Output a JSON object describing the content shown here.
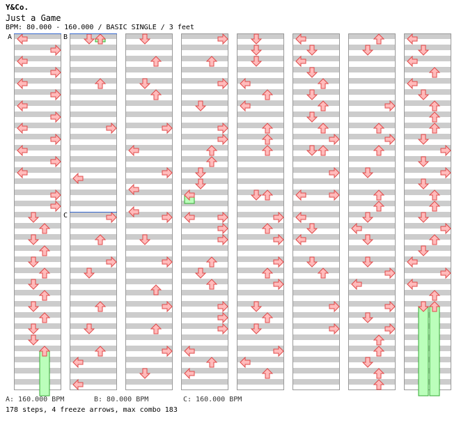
{
  "header": {
    "artist": "Y&Co.",
    "title": "Just a Game",
    "info": "BPM: 80.000 - 160.000 / BASIC SINGLE / 3 feet"
  },
  "colors": {
    "arrow_fill": "#ffbbbb",
    "arrow_stroke": "#e04848",
    "freeze_fill": "#bbffbb",
    "freeze_stroke": "#33aa33",
    "stripe": "#cccccc",
    "marker_line": "#3366cc"
  },
  "chart": {
    "columns": 8,
    "rows_per_measure": 8,
    "markers": [
      {
        "label": "A",
        "column": 0,
        "row": 0
      },
      {
        "label": "B",
        "column": 1,
        "row": 0
      },
      {
        "label": "C",
        "column": 1,
        "row": 32
      }
    ],
    "arrows": [
      {
        "c": 0,
        "r": 0,
        "d": "L"
      },
      {
        "c": 0,
        "r": 2,
        "d": "R"
      },
      {
        "c": 0,
        "r": 4,
        "d": "L"
      },
      {
        "c": 0,
        "r": 6,
        "d": "R"
      },
      {
        "c": 0,
        "r": 8,
        "d": "L"
      },
      {
        "c": 0,
        "r": 10,
        "d": "R"
      },
      {
        "c": 0,
        "r": 12,
        "d": "L"
      },
      {
        "c": 0,
        "r": 14,
        "d": "R"
      },
      {
        "c": 0,
        "r": 16,
        "d": "L"
      },
      {
        "c": 0,
        "r": 18,
        "d": "R"
      },
      {
        "c": 0,
        "r": 20,
        "d": "L"
      },
      {
        "c": 0,
        "r": 22,
        "d": "R"
      },
      {
        "c": 0,
        "r": 24,
        "d": "L"
      },
      {
        "c": 0,
        "r": 28,
        "d": "R"
      },
      {
        "c": 0,
        "r": 30,
        "d": "R"
      },
      {
        "c": 0,
        "r": 32,
        "d": "D"
      },
      {
        "c": 0,
        "r": 34,
        "d": "U"
      },
      {
        "c": 0,
        "r": 36,
        "d": "D"
      },
      {
        "c": 0,
        "r": 38,
        "d": "U"
      },
      {
        "c": 0,
        "r": 40,
        "d": "D"
      },
      {
        "c": 0,
        "r": 42,
        "d": "U"
      },
      {
        "c": 0,
        "r": 44,
        "d": "D"
      },
      {
        "c": 0,
        "r": 46,
        "d": "U"
      },
      {
        "c": 0,
        "r": 48,
        "d": "D"
      },
      {
        "c": 0,
        "r": 50,
        "d": "U"
      },
      {
        "c": 0,
        "r": 52,
        "d": "D"
      },
      {
        "c": 0,
        "r": 54,
        "d": "D"
      },
      {
        "c": 0,
        "r": 56,
        "d": "U"
      },
      {
        "c": 1,
        "r": 0,
        "d": "D"
      },
      {
        "c": 1,
        "r": 0,
        "d": "U"
      },
      {
        "c": 1,
        "r": 8,
        "d": "U"
      },
      {
        "c": 1,
        "r": 16,
        "d": "R"
      },
      {
        "c": 1,
        "r": 25,
        "d": "L"
      },
      {
        "c": 1,
        "r": 32,
        "d": "R"
      },
      {
        "c": 1,
        "r": 36,
        "d": "U"
      },
      {
        "c": 1,
        "r": 40,
        "d": "R"
      },
      {
        "c": 1,
        "r": 42,
        "d": "D"
      },
      {
        "c": 1,
        "r": 48,
        "d": "U"
      },
      {
        "c": 1,
        "r": 52,
        "d": "D"
      },
      {
        "c": 1,
        "r": 56,
        "d": "U"
      },
      {
        "c": 1,
        "r": 58,
        "d": "L"
      },
      {
        "c": 1,
        "r": 62,
        "d": "L"
      },
      {
        "c": 2,
        "r": 0,
        "d": "D"
      },
      {
        "c": 2,
        "r": 4,
        "d": "U"
      },
      {
        "c": 2,
        "r": 8,
        "d": "D"
      },
      {
        "c": 2,
        "r": 10,
        "d": "U"
      },
      {
        "c": 2,
        "r": 16,
        "d": "R"
      },
      {
        "c": 2,
        "r": 20,
        "d": "L"
      },
      {
        "c": 2,
        "r": 24,
        "d": "R"
      },
      {
        "c": 2,
        "r": 27,
        "d": "L"
      },
      {
        "c": 2,
        "r": 31,
        "d": "L"
      },
      {
        "c": 2,
        "r": 32,
        "d": "R"
      },
      {
        "c": 2,
        "r": 36,
        "d": "D"
      },
      {
        "c": 2,
        "r": 40,
        "d": "R"
      },
      {
        "c": 2,
        "r": 45,
        "d": "U"
      },
      {
        "c": 2,
        "r": 48,
        "d": "R"
      },
      {
        "c": 2,
        "r": 52,
        "d": "U"
      },
      {
        "c": 2,
        "r": 56,
        "d": "R"
      },
      {
        "c": 2,
        "r": 60,
        "d": "D"
      },
      {
        "c": 3,
        "r": 0,
        "d": "R"
      },
      {
        "c": 3,
        "r": 4,
        "d": "U"
      },
      {
        "c": 3,
        "r": 8,
        "d": "R"
      },
      {
        "c": 3,
        "r": 12,
        "d": "D"
      },
      {
        "c": 3,
        "r": 16,
        "d": "R"
      },
      {
        "c": 3,
        "r": 18,
        "d": "R"
      },
      {
        "c": 3,
        "r": 20,
        "d": "U"
      },
      {
        "c": 3,
        "r": 22,
        "d": "U"
      },
      {
        "c": 3,
        "r": 24,
        "d": "D"
      },
      {
        "c": 3,
        "r": 26,
        "d": "D"
      },
      {
        "c": 3,
        "r": 28,
        "d": "L"
      },
      {
        "c": 3,
        "r": 32,
        "d": "L"
      },
      {
        "c": 3,
        "r": 32,
        "d": "R"
      },
      {
        "c": 3,
        "r": 34,
        "d": "R"
      },
      {
        "c": 3,
        "r": 36,
        "d": "R"
      },
      {
        "c": 3,
        "r": 40,
        "d": "U"
      },
      {
        "c": 3,
        "r": 42,
        "d": "D"
      },
      {
        "c": 3,
        "r": 44,
        "d": "U"
      },
      {
        "c": 3,
        "r": 48,
        "d": "R"
      },
      {
        "c": 3,
        "r": 50,
        "d": "R"
      },
      {
        "c": 3,
        "r": 52,
        "d": "R"
      },
      {
        "c": 3,
        "r": 56,
        "d": "L"
      },
      {
        "c": 3,
        "r": 58,
        "d": "U"
      },
      {
        "c": 3,
        "r": 60,
        "d": "L"
      },
      {
        "c": 4,
        "r": 0,
        "d": "D"
      },
      {
        "c": 4,
        "r": 2,
        "d": "D"
      },
      {
        "c": 4,
        "r": 4,
        "d": "D"
      },
      {
        "c": 4,
        "r": 8,
        "d": "L"
      },
      {
        "c": 4,
        "r": 10,
        "d": "U"
      },
      {
        "c": 4,
        "r": 12,
        "d": "L"
      },
      {
        "c": 4,
        "r": 16,
        "d": "U"
      },
      {
        "c": 4,
        "r": 18,
        "d": "U"
      },
      {
        "c": 4,
        "r": 20,
        "d": "U"
      },
      {
        "c": 4,
        "r": 28,
        "d": "D"
      },
      {
        "c": 4,
        "r": 28,
        "d": "U"
      },
      {
        "c": 4,
        "r": 32,
        "d": "R"
      },
      {
        "c": 4,
        "r": 34,
        "d": "U"
      },
      {
        "c": 4,
        "r": 36,
        "d": "R"
      },
      {
        "c": 4,
        "r": 40,
        "d": "R"
      },
      {
        "c": 4,
        "r": 42,
        "d": "U"
      },
      {
        "c": 4,
        "r": 44,
        "d": "R"
      },
      {
        "c": 4,
        "r": 48,
        "d": "D"
      },
      {
        "c": 4,
        "r": 50,
        "d": "U"
      },
      {
        "c": 4,
        "r": 52,
        "d": "D"
      },
      {
        "c": 4,
        "r": 56,
        "d": "R"
      },
      {
        "c": 4,
        "r": 58,
        "d": "L"
      },
      {
        "c": 4,
        "r": 60,
        "d": "U"
      },
      {
        "c": 5,
        "r": 0,
        "d": "L"
      },
      {
        "c": 5,
        "r": 2,
        "d": "D"
      },
      {
        "c": 5,
        "r": 4,
        "d": "L"
      },
      {
        "c": 5,
        "r": 6,
        "d": "D"
      },
      {
        "c": 5,
        "r": 8,
        "d": "U"
      },
      {
        "c": 5,
        "r": 10,
        "d": "D"
      },
      {
        "c": 5,
        "r": 12,
        "d": "U"
      },
      {
        "c": 5,
        "r": 14,
        "d": "D"
      },
      {
        "c": 5,
        "r": 16,
        "d": "U"
      },
      {
        "c": 5,
        "r": 18,
        "d": "R"
      },
      {
        "c": 5,
        "r": 20,
        "d": "D"
      },
      {
        "c": 5,
        "r": 20,
        "d": "U"
      },
      {
        "c": 5,
        "r": 24,
        "d": "R"
      },
      {
        "c": 5,
        "r": 28,
        "d": "L"
      },
      {
        "c": 5,
        "r": 28,
        "d": "R"
      },
      {
        "c": 5,
        "r": 32,
        "d": "L"
      },
      {
        "c": 5,
        "r": 34,
        "d": "D"
      },
      {
        "c": 5,
        "r": 36,
        "d": "L"
      },
      {
        "c": 5,
        "r": 40,
        "d": "D"
      },
      {
        "c": 5,
        "r": 42,
        "d": "U"
      },
      {
        "c": 5,
        "r": 48,
        "d": "R"
      },
      {
        "c": 5,
        "r": 52,
        "d": "R"
      },
      {
        "c": 6,
        "r": 0,
        "d": "U"
      },
      {
        "c": 6,
        "r": 2,
        "d": "D"
      },
      {
        "c": 6,
        "r": 12,
        "d": "R"
      },
      {
        "c": 6,
        "r": 16,
        "d": "U"
      },
      {
        "c": 6,
        "r": 18,
        "d": "R"
      },
      {
        "c": 6,
        "r": 20,
        "d": "U"
      },
      {
        "c": 6,
        "r": 24,
        "d": "D"
      },
      {
        "c": 6,
        "r": 28,
        "d": "U"
      },
      {
        "c": 6,
        "r": 30,
        "d": "U"
      },
      {
        "c": 6,
        "r": 32,
        "d": "D"
      },
      {
        "c": 6,
        "r": 34,
        "d": "L"
      },
      {
        "c": 6,
        "r": 36,
        "d": "D"
      },
      {
        "c": 6,
        "r": 40,
        "d": "D"
      },
      {
        "c": 6,
        "r": 42,
        "d": "R"
      },
      {
        "c": 6,
        "r": 44,
        "d": "L"
      },
      {
        "c": 6,
        "r": 48,
        "d": "R"
      },
      {
        "c": 6,
        "r": 50,
        "d": "D"
      },
      {
        "c": 6,
        "r": 52,
        "d": "R"
      },
      {
        "c": 6,
        "r": 54,
        "d": "U"
      },
      {
        "c": 6,
        "r": 56,
        "d": "U"
      },
      {
        "c": 6,
        "r": 58,
        "d": "D"
      },
      {
        "c": 6,
        "r": 60,
        "d": "U"
      },
      {
        "c": 6,
        "r": 62,
        "d": "U"
      },
      {
        "c": 7,
        "r": 0,
        "d": "L"
      },
      {
        "c": 7,
        "r": 2,
        "d": "D"
      },
      {
        "c": 7,
        "r": 4,
        "d": "L"
      },
      {
        "c": 7,
        "r": 6,
        "d": "U"
      },
      {
        "c": 7,
        "r": 8,
        "d": "L"
      },
      {
        "c": 7,
        "r": 10,
        "d": "D"
      },
      {
        "c": 7,
        "r": 12,
        "d": "U"
      },
      {
        "c": 7,
        "r": 14,
        "d": "U"
      },
      {
        "c": 7,
        "r": 16,
        "d": "U"
      },
      {
        "c": 7,
        "r": 18,
        "d": "D"
      },
      {
        "c": 7,
        "r": 20,
        "d": "R"
      },
      {
        "c": 7,
        "r": 22,
        "d": "D"
      },
      {
        "c": 7,
        "r": 24,
        "d": "R"
      },
      {
        "c": 7,
        "r": 26,
        "d": "D"
      },
      {
        "c": 7,
        "r": 28,
        "d": "U"
      },
      {
        "c": 7,
        "r": 30,
        "d": "U"
      },
      {
        "c": 7,
        "r": 32,
        "d": "D"
      },
      {
        "c": 7,
        "r": 34,
        "d": "R"
      },
      {
        "c": 7,
        "r": 36,
        "d": "U"
      },
      {
        "c": 7,
        "r": 38,
        "d": "D"
      },
      {
        "c": 7,
        "r": 40,
        "d": "L"
      },
      {
        "c": 7,
        "r": 42,
        "d": "R"
      },
      {
        "c": 7,
        "r": 44,
        "d": "L"
      },
      {
        "c": 7,
        "r": 46,
        "d": "U"
      },
      {
        "c": 7,
        "r": 48,
        "d": "D"
      },
      {
        "c": 7,
        "r": 48,
        "d": "U"
      }
    ],
    "freezes": [
      {
        "c": 1,
        "lane": "U",
        "r_start": 0,
        "r_end": 0.5
      },
      {
        "c": 3,
        "lane": "L",
        "r_start": 28,
        "r_end": 29.5
      },
      {
        "c": 0,
        "lane": "U",
        "r_start": 56,
        "r_end": 64
      },
      {
        "c": 7,
        "lane": "D",
        "r_start": 48,
        "r_end": 64
      },
      {
        "c": 7,
        "lane": "U",
        "r_start": 48,
        "r_end": 64
      }
    ]
  },
  "footer": {
    "bpm_a": "A: 160.000 BPM",
    "bpm_b": "B: 80.000 BPM",
    "bpm_c": "C: 160.000 BPM",
    "stats": "178 steps, 4 freeze arrows, max combo 183"
  }
}
